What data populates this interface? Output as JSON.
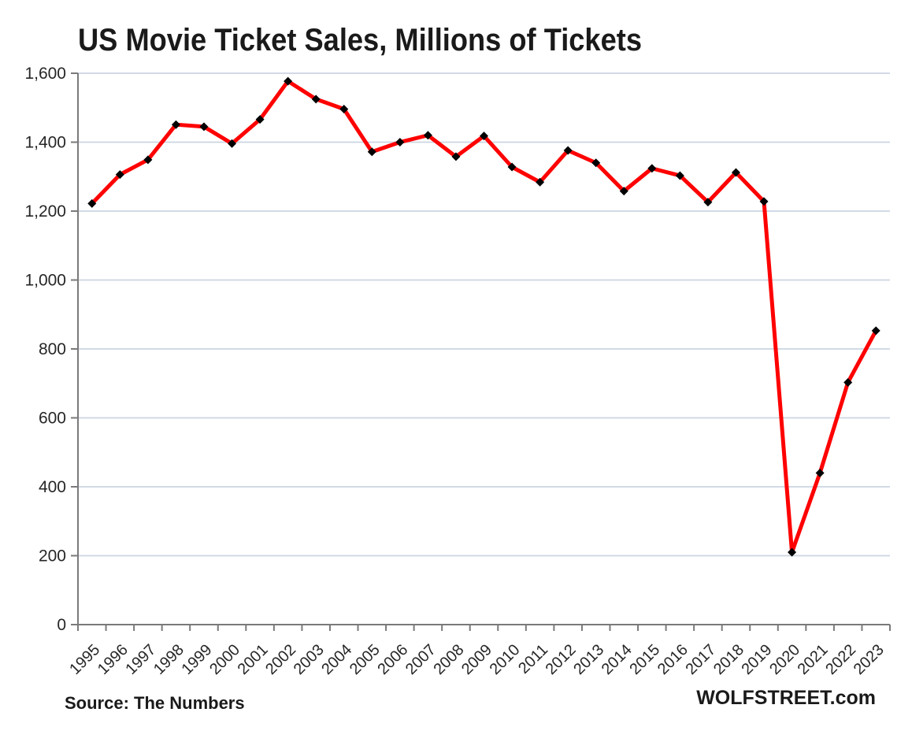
{
  "chart_data": {
    "type": "line",
    "title": "US Movie Ticket Sales, Millions of Tickets",
    "xlabel": "",
    "ylabel": "",
    "x": [
      "1995",
      "1996",
      "1997",
      "1998",
      "1999",
      "2000",
      "2001",
      "2002",
      "2003",
      "2004",
      "2005",
      "2006",
      "2007",
      "2008",
      "2009",
      "2010",
      "2011",
      "2012",
      "2013",
      "2014",
      "2015",
      "2016",
      "2017",
      "2018",
      "2019",
      "2020",
      "2021",
      "2022",
      "2023"
    ],
    "series": [
      {
        "name": "US movie ticket sales (millions of tickets)",
        "values": [
          1222,
          1306,
          1349,
          1451,
          1445,
          1396,
          1466,
          1577,
          1525,
          1496,
          1372,
          1400,
          1420,
          1358,
          1418,
          1328,
          1284,
          1376,
          1340,
          1258,
          1324,
          1303,
          1226,
          1312,
          1228,
          210,
          440,
          703,
          853
        ]
      }
    ],
    "ylim": [
      0,
      1600
    ],
    "ytick_step": 200,
    "ytick_labels": [
      "0",
      "200",
      "400",
      "600",
      "800",
      "1,000",
      "1,200",
      "1,400",
      "1,600"
    ],
    "grid": true,
    "legend_position": "none",
    "marker": "diamond",
    "colors": {
      "line": "#ff0000",
      "marker": "#000000",
      "gridline": "#ccd5e2",
      "axis": "#7a7a7a",
      "tick_text": "#262626",
      "title_text": "#1a1a1a"
    }
  },
  "footer": {
    "source": "Source: The Numbers",
    "branding": "WOLFSTREET.com"
  }
}
